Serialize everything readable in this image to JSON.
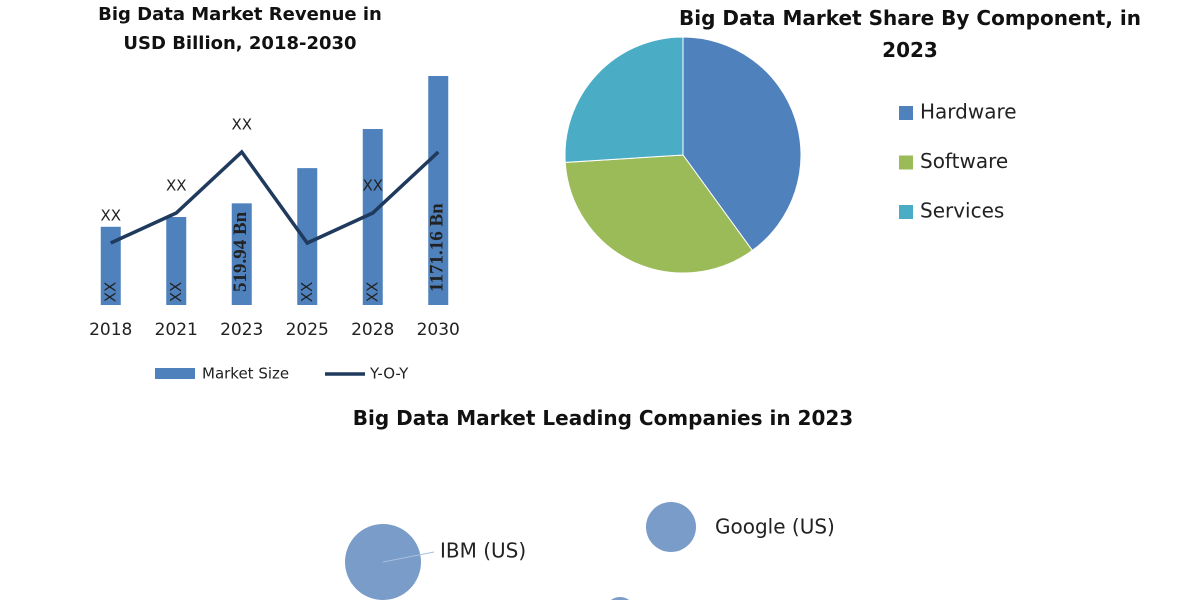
{
  "chart_data": [
    {
      "type": "bar_line",
      "title": "Big Data Market Revenue in USD Billion, 2018-2030",
      "categories": [
        "2018",
        "2021",
        "2023",
        "2025",
        "2028",
        "2030"
      ],
      "series": [
        {
          "name": "Market Size",
          "type": "bar",
          "color": "#4f81bd",
          "values": [
            400,
            450,
            519.94,
            700,
            900,
            1171.16
          ],
          "value_labels": [
            "XX",
            "XX",
            "519.94 Bn",
            "XX",
            "XX",
            "1171.16 Bn"
          ]
        },
        {
          "name": "Y-O-Y",
          "type": "line",
          "color": "#1f3a5c",
          "values": [
            6.2,
            9.2,
            15.3,
            6.2,
            9.2,
            15.3
          ],
          "value_labels": [
            "XX",
            "XX",
            "XX",
            null,
            "XX",
            null
          ]
        }
      ]
    },
    {
      "type": "pie",
      "title": "Big Data Market Share By Component, in 2023",
      "categories": [
        "Hardware",
        "Software",
        "Services"
      ],
      "values": [
        40,
        34,
        26
      ],
      "colors": [
        "#4f81bd",
        "#9bbb59",
        "#4bacc6"
      ]
    },
    {
      "type": "bubble",
      "title": "Big Data Market Leading Companies in 2023",
      "categories": [
        "IBM (US)",
        "Google (US)",
        null
      ],
      "values": [
        38,
        25,
        15
      ],
      "color": "#7a9cc9"
    }
  ]
}
